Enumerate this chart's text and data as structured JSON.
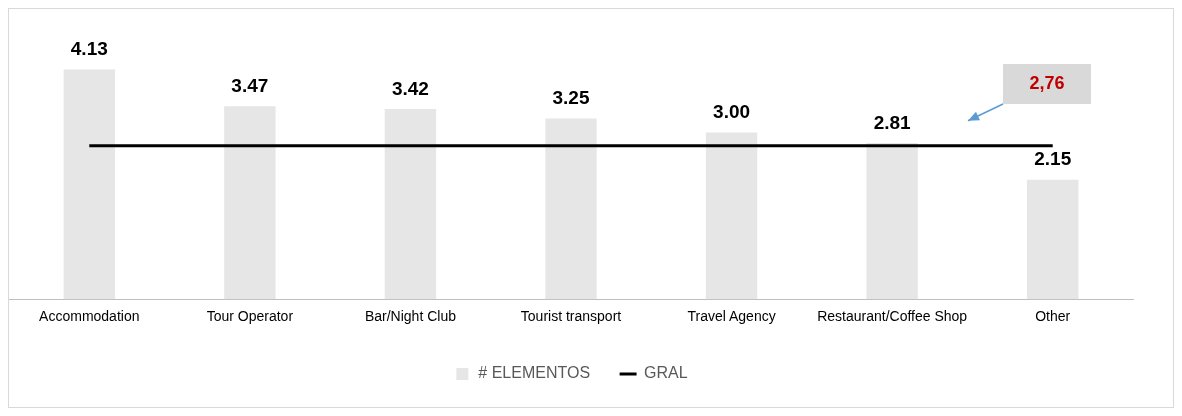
{
  "chart_data": {
    "type": "bar",
    "categories": [
      "Accommodation",
      "Tour Operator",
      "Bar/Night Club",
      "Tourist transport",
      "Travel Agency",
      "Restaurant/Coffee Shop",
      "Other"
    ],
    "series": [
      {
        "name": "# ELEMENTOS",
        "color": "#e6e6e6",
        "values": [
          4.13,
          3.47,
          3.42,
          3.25,
          3.0,
          2.81,
          2.15
        ],
        "value_labels": [
          "4.13",
          "3.47",
          "3.42",
          "3.25",
          "3.00",
          "2.81",
          "2.15"
        ]
      },
      {
        "name": "GRAL",
        "type": "line",
        "color": "#000000",
        "values": [
          2.76,
          2.76,
          2.76,
          2.76,
          2.76,
          2.76,
          2.76
        ]
      }
    ],
    "annotations": [
      {
        "text": "2,76",
        "y": 2.76
      }
    ],
    "legend": "bottom",
    "grid": false,
    "marker": "none",
    "tick_labels": "x"
  }
}
